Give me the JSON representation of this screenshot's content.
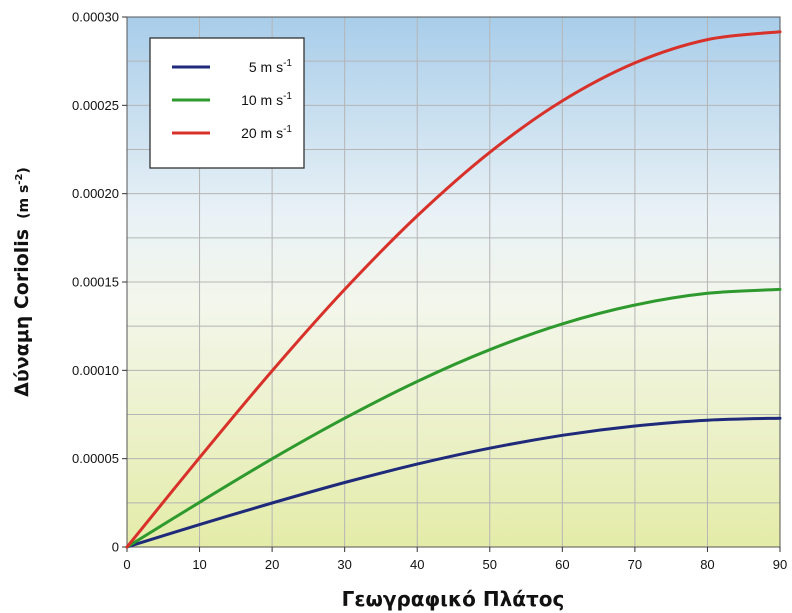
{
  "chart_data": {
    "type": "line",
    "title": "",
    "xlabel": "Γεωγραφικό Πλάτος",
    "ylabel_text": "Δύναμη Coriolis",
    "ylabel_unit": "(m s",
    "ylabel_unit_sup": "-2",
    "ylabel_unit_end": ")",
    "xlim": [
      0,
      90
    ],
    "ylim": [
      0,
      0.0003
    ],
    "x_ticks": [
      "0",
      "10",
      "20",
      "30",
      "40",
      "50",
      "60",
      "70",
      "80",
      "90"
    ],
    "y_ticks": [
      "0",
      "0.00005",
      "0.00010",
      "0.00015",
      "0.00020",
      "0.00025",
      "0.00030"
    ],
    "grid": true,
    "legend_position": "top-left",
    "x": [
      0,
      10,
      20,
      30,
      40,
      50,
      60,
      70,
      80,
      90
    ],
    "series": [
      {
        "name": "5 m s",
        "name_sup": "-1",
        "color": "#1f2a7a",
        "values": [
          0,
          1.27e-05,
          2.49e-05,
          3.65e-05,
          4.69e-05,
          5.59e-05,
          6.32e-05,
          6.85e-05,
          7.18e-05,
          7.29e-05
        ]
      },
      {
        "name": "10 m s",
        "name_sup": "-1",
        "color": "#2e9a2e",
        "values": [
          0,
          2.53e-05,
          4.99e-05,
          7.29e-05,
          9.37e-05,
          0.0001117,
          0.0001263,
          0.000137,
          0.0001436,
          0.0001458
        ]
      },
      {
        "name": "20 m s",
        "name_sup": "-1",
        "color": "#d8312a",
        "values": [
          0,
          5.06e-05,
          9.97e-05,
          0.0001458,
          0.0001874,
          0.0002234,
          0.0002525,
          0.000274,
          0.0002872,
          0.0002916
        ]
      }
    ]
  }
}
